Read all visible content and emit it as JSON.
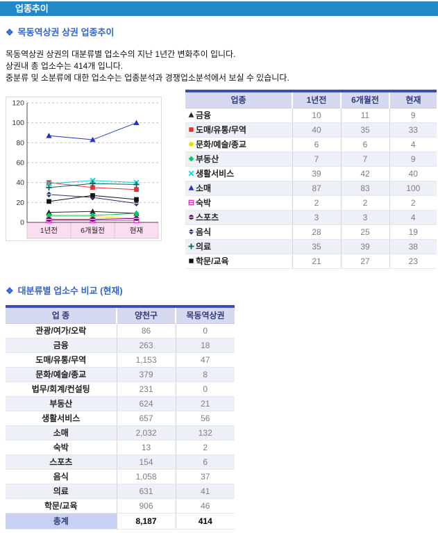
{
  "header": {
    "title": "업종추이"
  },
  "section_trend": {
    "icon": "❖",
    "title": "목동역상권 상권 업종추이",
    "description_lines": [
      "목동역상권 상권의 대분류별 업소수의 지난 1년간 변화추이 입니다.",
      "상권내 총 업소수는 414개 입니다.",
      "중분류 및 소분류에 대한 업소수는 업종분석과 경쟁업소분석에서 보실 수 있습니다."
    ]
  },
  "chart_data": {
    "type": "line",
    "x": [
      "1년전",
      "6개월전",
      "현재"
    ],
    "ylim": [
      0,
      120
    ],
    "yticks": [
      0,
      20,
      40,
      60,
      80,
      100,
      120
    ],
    "grid": "horizontal-dashed",
    "legend_position": "table-right",
    "series": [
      {
        "name": "금융",
        "marker": "triangle",
        "color": "#222222",
        "values": [
          10,
          11,
          9
        ]
      },
      {
        "name": "도매/유통/무역",
        "marker": "square",
        "color": "#e83030",
        "values": [
          40,
          35,
          33
        ]
      },
      {
        "name": "문화/예술/종교",
        "marker": "circle",
        "color": "#ecdf00",
        "values": [
          6,
          6,
          4
        ]
      },
      {
        "name": "부동산",
        "marker": "diamond",
        "color": "#00cc66",
        "values": [
          7,
          7,
          9
        ]
      },
      {
        "name": "생활서비스",
        "marker": "x",
        "color": "#00d8d8",
        "values": [
          39,
          42,
          40
        ]
      },
      {
        "name": "소매",
        "marker": "triangle",
        "color": "#2233cc",
        "values": [
          87,
          83,
          100
        ]
      },
      {
        "name": "숙박",
        "marker": "square-open",
        "color": "#ee22cc",
        "values": [
          2,
          2,
          2
        ]
      },
      {
        "name": "스포츠",
        "marker": "circle-line",
        "color": "#770077",
        "values": [
          3,
          3,
          4
        ]
      },
      {
        "name": "음식",
        "marker": "diamond-line",
        "color": "#223366",
        "values": [
          28,
          25,
          19
        ]
      },
      {
        "name": "의료",
        "marker": "plus",
        "color": "#006655",
        "values": [
          35,
          39,
          38
        ]
      },
      {
        "name": "학문/교육",
        "marker": "square",
        "color": "#111111",
        "values": [
          21,
          27,
          23
        ]
      }
    ],
    "xband_color": "#fbdcf0"
  },
  "trend_table": {
    "headers": [
      "업종",
      "1년전",
      "6개월전",
      "현재"
    ]
  },
  "section_compare": {
    "icon": "❖",
    "title": "대분류별 업소수 비교 (현재)"
  },
  "compare_table": {
    "headers": [
      "업 종",
      "양천구",
      "목동역상권"
    ],
    "rows": [
      [
        "관광/여가/오락",
        "86",
        "0"
      ],
      [
        "금융",
        "263",
        "18"
      ],
      [
        "도매/유통/무역",
        "1,153",
        "47"
      ],
      [
        "문화/예술/종교",
        "379",
        "8"
      ],
      [
        "법무/회계/컨설팅",
        "231",
        "0"
      ],
      [
        "부동산",
        "624",
        "21"
      ],
      [
        "생활서비스",
        "657",
        "56"
      ],
      [
        "소매",
        "2,032",
        "132"
      ],
      [
        "숙박",
        "13",
        "2"
      ],
      [
        "스포츠",
        "154",
        "6"
      ],
      [
        "음식",
        "1,058",
        "37"
      ],
      [
        "의료",
        "631",
        "41"
      ],
      [
        "학문/교육",
        "906",
        "46"
      ]
    ],
    "total": [
      "총계",
      "8,187",
      "414"
    ]
  },
  "colors": {
    "header_bar": "#2289c8",
    "section_title": "#3366cc",
    "table_top_bar": "#3a50b0",
    "table_header_bg": "#d6daf0",
    "table_header_text": "#2f3a7a",
    "row_alt_bg": "#eef0f7",
    "total_row_bg": "#c9d1f2",
    "xband_bg": "#fbdcf0"
  }
}
